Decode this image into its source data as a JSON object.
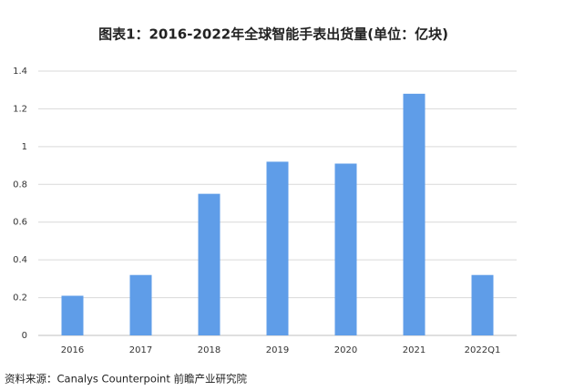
{
  "chart_data": {
    "type": "bar",
    "title": "图表1：2016-2022年全球智能手表出货量(单位：亿块)",
    "source": "资料来源：Canalys Counterpoint 前瞻产业研究院",
    "categories": [
      "2016",
      "2017",
      "2018",
      "2019",
      "2020",
      "2021",
      "2022Q1"
    ],
    "values": [
      0.21,
      0.32,
      0.75,
      0.92,
      0.91,
      1.28,
      0.32
    ],
    "color": "#5f9de8",
    "ylim": [
      0,
      1.4
    ],
    "yticks": [
      0,
      0.2,
      0.4,
      0.6,
      0.8,
      1,
      1.2,
      1.4
    ],
    "grid": true
  }
}
